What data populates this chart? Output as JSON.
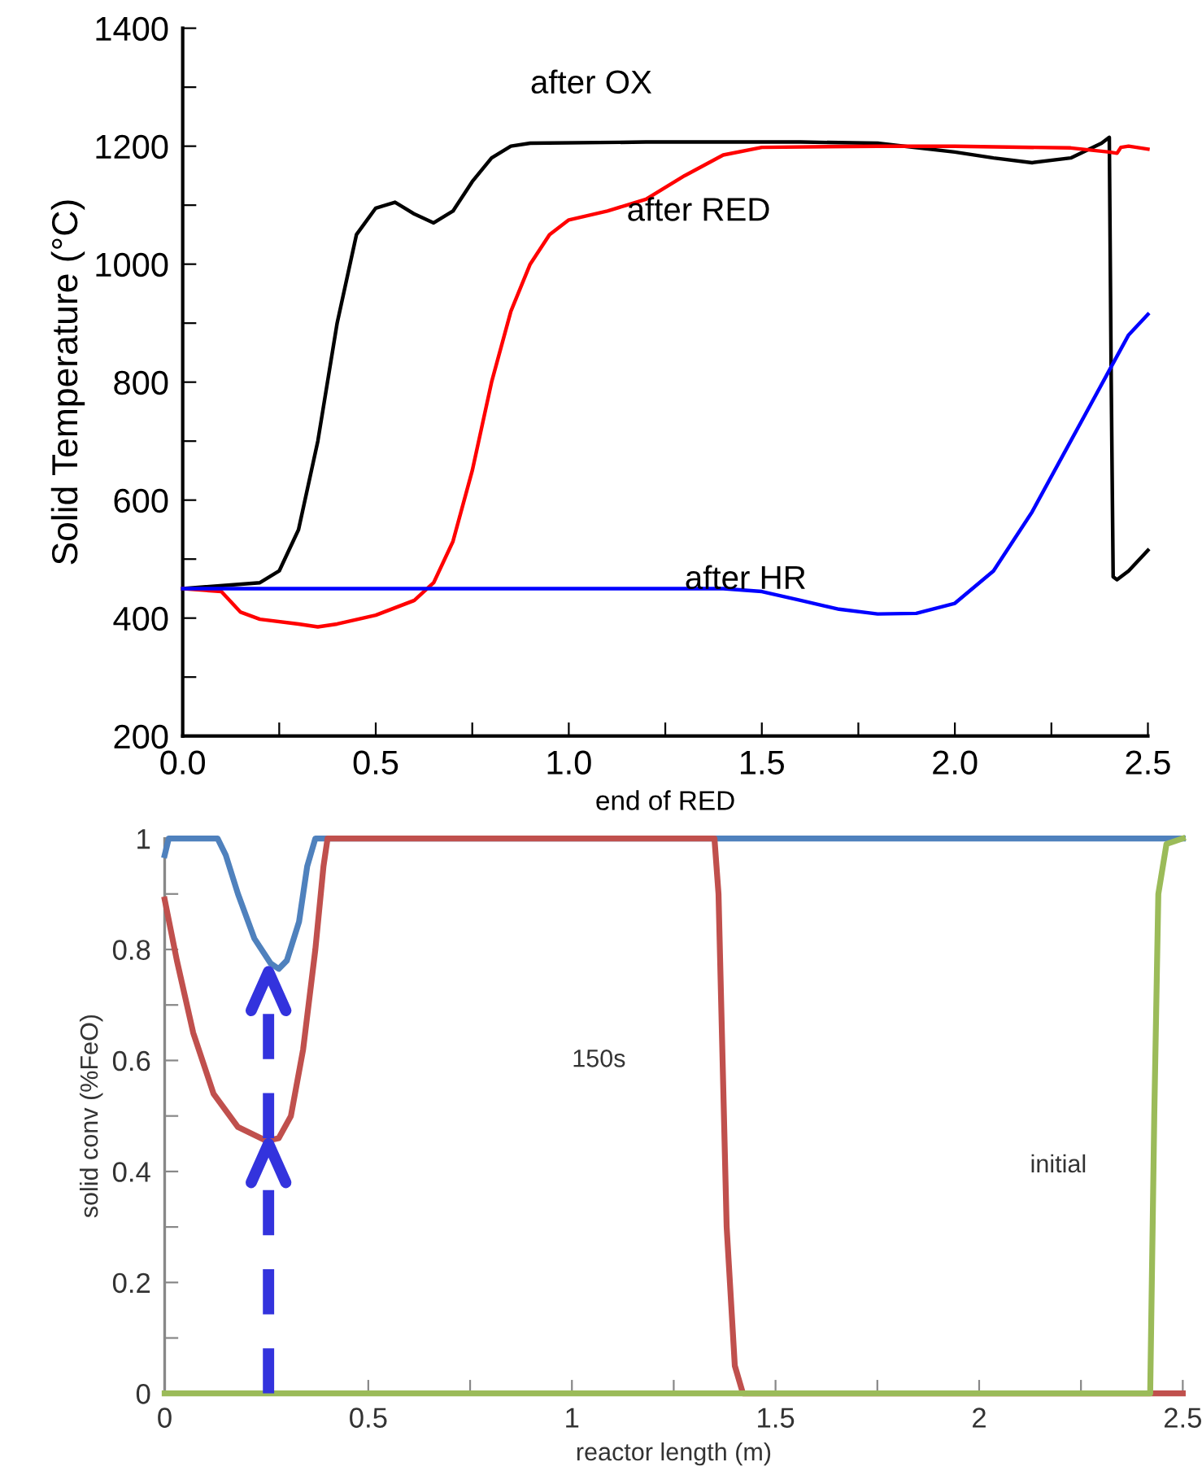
{
  "chart_data": [
    {
      "type": "line",
      "xlabel": "end of RED",
      "ylabel": "Solid Temperature (°C)",
      "xlim": [
        0,
        2.5
      ],
      "ylim": [
        200,
        1400
      ],
      "xticks": [
        {
          "value": 0,
          "label": "0.0"
        },
        {
          "value": 0.25,
          "label": null
        },
        0.5,
        {
          "value": 0.75,
          "label": null
        },
        {
          "value": 1,
          "label": "1.0"
        },
        {
          "value": 1.25,
          "label": null
        },
        1.5,
        {
          "value": 1.75,
          "label": null
        },
        {
          "value": 2,
          "label": "2.0"
        },
        {
          "value": 2.25,
          "label": null
        },
        2.5
      ],
      "yticks": [
        200,
        {
          "value": 300,
          "label": null
        },
        400,
        {
          "value": 500,
          "label": null
        },
        600,
        {
          "value": 700,
          "label": null
        },
        800,
        {
          "value": 900,
          "label": null
        },
        1000,
        {
          "value": 1100,
          "label": null
        },
        1200,
        {
          "value": 1300,
          "label": null
        },
        1400
      ],
      "grid": false,
      "legend": false,
      "line_style": "solid",
      "marker": "none",
      "series": [
        {
          "name": "after OX",
          "color": "#000000",
          "x": [
            0,
            0.2,
            0.25,
            0.3,
            0.35,
            0.4,
            0.45,
            0.5,
            0.55,
            0.6,
            0.65,
            0.7,
            0.75,
            0.8,
            0.85,
            0.9,
            1.2,
            1.6,
            1.8,
            2.0,
            2.1,
            2.2,
            2.3,
            2.38,
            2.4,
            2.405,
            2.41,
            2.42,
            2.45,
            2.5
          ],
          "values": [
            450,
            460,
            480,
            550,
            700,
            900,
            1050,
            1095,
            1105,
            1085,
            1070,
            1090,
            1140,
            1180,
            1200,
            1205,
            1207,
            1207,
            1205,
            1190,
            1180,
            1172,
            1180,
            1205,
            1215,
            800,
            470,
            465,
            480,
            515
          ]
        },
        {
          "name": "after RED",
          "color": "#ff0000",
          "x": [
            0,
            0.1,
            0.15,
            0.2,
            0.3,
            0.35,
            0.4,
            0.5,
            0.6,
            0.65,
            0.7,
            0.75,
            0.8,
            0.85,
            0.9,
            0.95,
            1.0,
            1.1,
            1.2,
            1.3,
            1.4,
            1.5,
            1.8,
            2.0,
            2.3,
            2.4,
            2.42,
            2.43,
            2.45,
            2.5
          ],
          "values": [
            450,
            445,
            410,
            398,
            390,
            385,
            390,
            405,
            430,
            460,
            530,
            650,
            800,
            920,
            1000,
            1050,
            1075,
            1090,
            1110,
            1150,
            1185,
            1198,
            1200,
            1200,
            1197,
            1190,
            1188,
            1198,
            1200,
            1195
          ]
        },
        {
          "name": "after HR",
          "color": "#0000ff",
          "x": [
            0,
            1.4,
            1.5,
            1.6,
            1.7,
            1.8,
            1.9,
            2.0,
            2.1,
            2.2,
            2.3,
            2.4,
            2.45,
            2.5
          ],
          "values": [
            450,
            450,
            445,
            430,
            415,
            407,
            408,
            425,
            480,
            580,
            700,
            820,
            880,
            915
          ]
        }
      ]
    },
    {
      "type": "line",
      "xlabel": "reactor length (m)",
      "ylabel": "solid conv (%FeO)",
      "xlim": [
        0,
        2.5
      ],
      "ylim": [
        0,
        1
      ],
      "xticks": [
        0,
        {
          "value": 0.25,
          "label": null
        },
        0.5,
        {
          "value": 0.75,
          "label": null
        },
        1,
        {
          "value": 1.25,
          "label": null
        },
        1.5,
        {
          "value": 1.75,
          "label": null
        },
        2,
        {
          "value": 2.25,
          "label": null
        },
        2.5
      ],
      "yticks": [
        0,
        {
          "value": 0.1,
          "label": null
        },
        0.2,
        {
          "value": 0.3,
          "label": null
        },
        0.4,
        {
          "value": 0.5,
          "label": null
        },
        0.6,
        {
          "value": 0.7,
          "label": null
        },
        0.8,
        {
          "value": 0.9,
          "label": null
        },
        1
      ],
      "grid": false,
      "legend": false,
      "line_style": "solid",
      "marker": "none",
      "annotations": [
        "150s",
        "initial"
      ],
      "series": [
        {
          "color": "#4f81bd",
          "x": [
            0,
            0.01,
            0.13,
            0.15,
            0.18,
            0.22,
            0.26,
            0.28,
            0.3,
            0.33,
            0.35,
            0.37,
            2.5
          ],
          "values": [
            0.97,
            1,
            1,
            0.97,
            0.9,
            0.82,
            0.775,
            0.765,
            0.78,
            0.85,
            0.95,
            1,
            1
          ]
        },
        {
          "color": "#c0504d",
          "x": [
            0,
            0.03,
            0.07,
            0.12,
            0.18,
            0.25,
            0.28,
            0.31,
            0.34,
            0.37,
            0.39,
            0.4,
            1.35,
            1.36,
            1.37,
            1.38,
            1.4,
            1.42,
            2.5
          ],
          "values": [
            0.89,
            0.78,
            0.65,
            0.54,
            0.48,
            0.455,
            0.46,
            0.5,
            0.62,
            0.8,
            0.95,
            1,
            1,
            0.9,
            0.6,
            0.3,
            0.05,
            0,
            0
          ]
        },
        {
          "color": "#9bbb59",
          "x": [
            0,
            2.42,
            2.43,
            2.44,
            2.46,
            2.5
          ],
          "values": [
            0,
            0,
            0.5,
            0.9,
            0.99,
            1
          ]
        }
      ]
    }
  ]
}
